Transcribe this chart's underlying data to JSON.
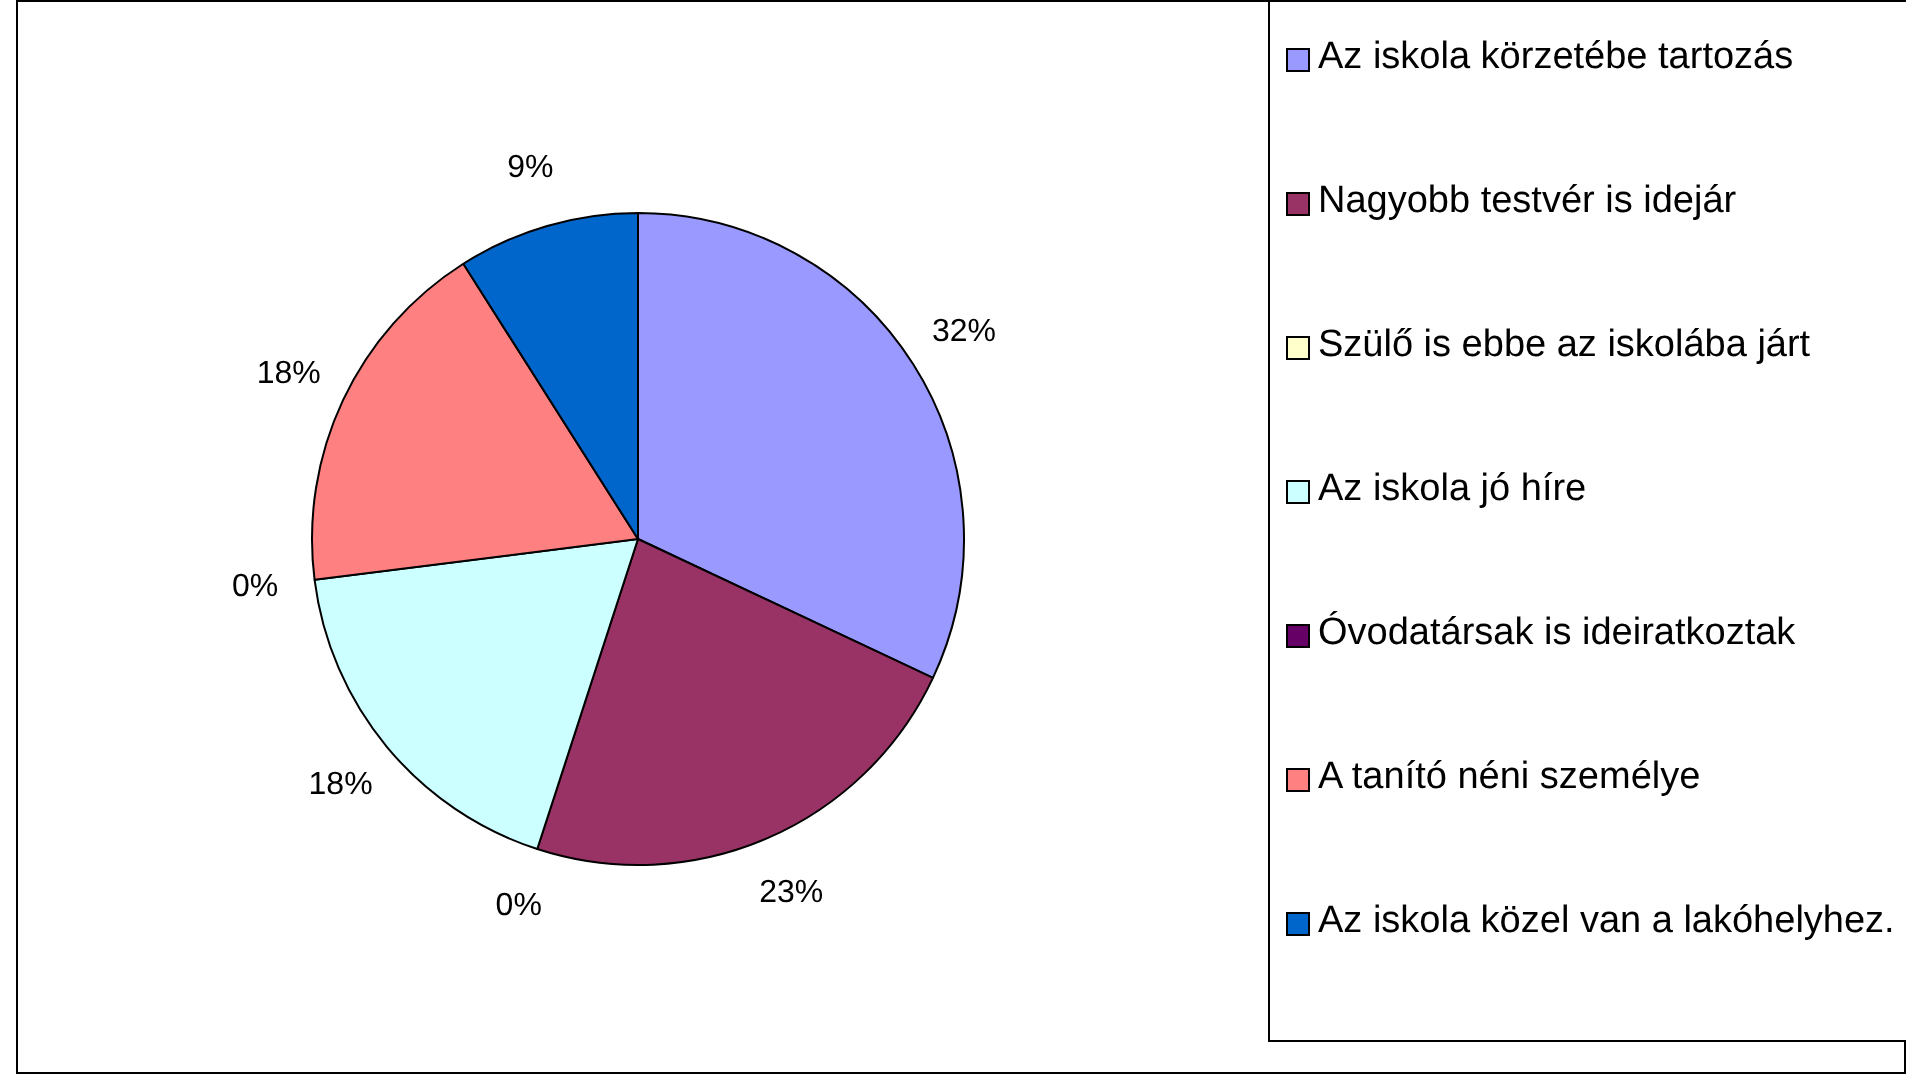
{
  "chart_data": {
    "type": "pie",
    "categories": [
      "Az iskola körzetébe tartozás",
      "Nagyobb testvér is idejár",
      "Szülő is ebbe az iskolába járt",
      "Az iskola jó híre",
      "Óvodatársak is ideiratkoztak",
      "A tanító néni személye",
      "Az iskola közel van a lakóhelyhez."
    ],
    "values": [
      32,
      23,
      0,
      18,
      0,
      18,
      9
    ],
    "colors": [
      "#9999ff",
      "#993366",
      "#ffffcc",
      "#ccffff",
      "#660066",
      "#ff8080",
      "#0066cc"
    ],
    "value_labels": [
      "32%",
      "23%",
      "0%",
      "18%",
      "0%",
      "18%",
      "9%"
    ],
    "legend": "right"
  }
}
